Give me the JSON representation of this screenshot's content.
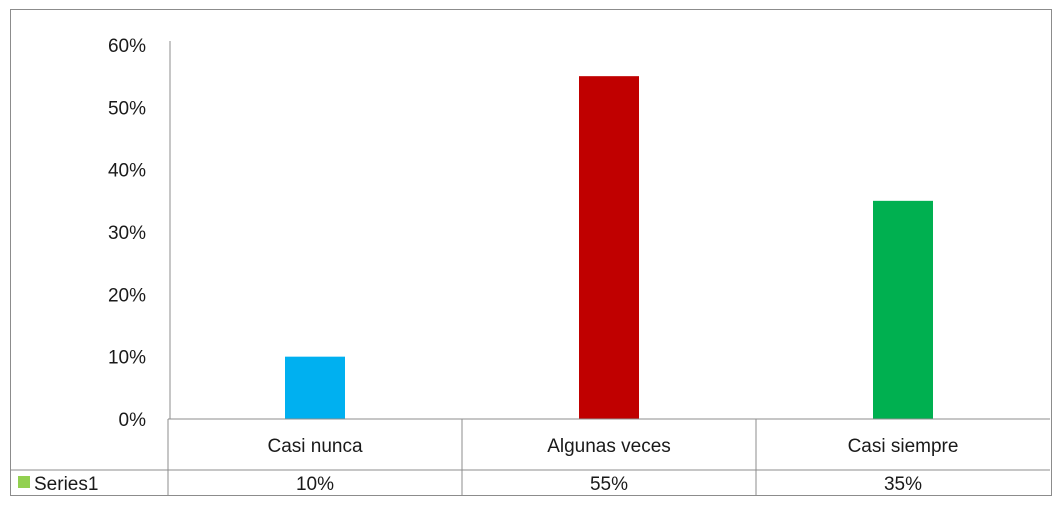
{
  "chart_data": {
    "type": "bar",
    "categories": [
      "Casi nunca",
      "Algunas veces",
      "Casi siempre"
    ],
    "series": [
      {
        "name": "Series1",
        "values": [
          10,
          55,
          35
        ],
        "value_labels": [
          "10%",
          "55%",
          "35%"
        ]
      }
    ],
    "bar_colors": [
      "#00b0f0",
      "#c00000",
      "#00b050"
    ],
    "legend_key_color": "#92d050",
    "yticks": [
      0,
      10,
      20,
      30,
      40,
      50,
      60
    ],
    "ytick_labels": [
      "0%",
      "10%",
      "20%",
      "30%",
      "40%",
      "50%",
      "60%"
    ],
    "ylim": [
      0,
      60
    ],
    "grid": false,
    "legend": "data-table",
    "title": "",
    "xlabel": "",
    "ylabel": ""
  }
}
